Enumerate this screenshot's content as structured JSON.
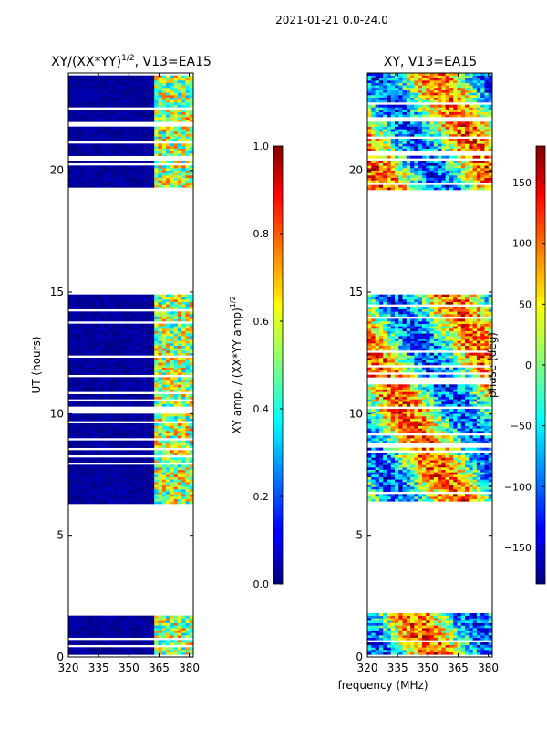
{
  "figure": {
    "suptitle": "2021-01-21 0.0-24.0",
    "xlabel": "frequency (MHz)",
    "cmap": "jet"
  },
  "chart_data": [
    {
      "type": "heatmap",
      "title_main": "XY/(XX*YY)",
      "title_exp": "1/2",
      "title_rest": ", V13=EA15",
      "xlabel": "",
      "ylabel": "UT (hours)",
      "xlim": [
        320,
        382
      ],
      "ylim": [
        0,
        24
      ],
      "xticks": [
        320,
        335,
        350,
        365,
        380
      ],
      "yticks": [
        0,
        5,
        10,
        15,
        20
      ],
      "valid_time_ranges_hours": [
        [
          0.0,
          1.8
        ],
        [
          6.3,
          14.9
        ],
        [
          19.2,
          24.0
        ]
      ],
      "bright_channel_range_mhz": [
        362,
        382
      ],
      "colorbar": {
        "label_main": "XY amp. / (XX*YY amp)",
        "label_exp": "1/2",
        "range": [
          0.0,
          1.0
        ],
        "ticks": [
          "0.0",
          "0.2",
          "0.4",
          "0.6",
          "0.8",
          "1.0"
        ],
        "tick_values": [
          0.0,
          0.2,
          0.4,
          0.6,
          0.8,
          1.0
        ]
      }
    },
    {
      "type": "heatmap",
      "title": "XY, V13=EA15",
      "xlabel": "",
      "ylabel": "",
      "xlim": [
        320,
        382
      ],
      "ylim": [
        0,
        24
      ],
      "xticks": [
        320,
        335,
        350,
        365,
        380
      ],
      "yticks": [
        0,
        5,
        10,
        15,
        20
      ],
      "valid_time_ranges_hours": [
        [
          0.0,
          1.8
        ],
        [
          6.3,
          14.9
        ],
        [
          19.2,
          24.0
        ]
      ],
      "colorbar": {
        "label": "phase (deg)",
        "range": [
          -180,
          180
        ],
        "ticks": [
          "−150",
          "−100",
          "−50",
          "0",
          "50",
          "100",
          "150"
        ],
        "tick_values": [
          -150,
          -100,
          -50,
          0,
          50,
          100,
          150
        ]
      }
    }
  ]
}
